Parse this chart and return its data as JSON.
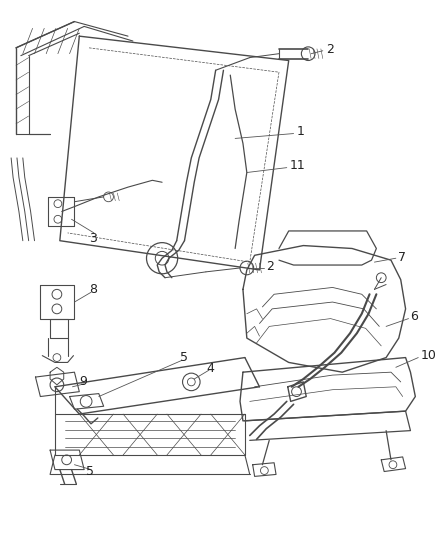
{
  "background_color": "#ffffff",
  "fig_width": 4.38,
  "fig_height": 5.33,
  "dpi": 100,
  "line_color": "#4a4a4a",
  "label_color": "#222222",
  "label_fontsize": 8.5
}
